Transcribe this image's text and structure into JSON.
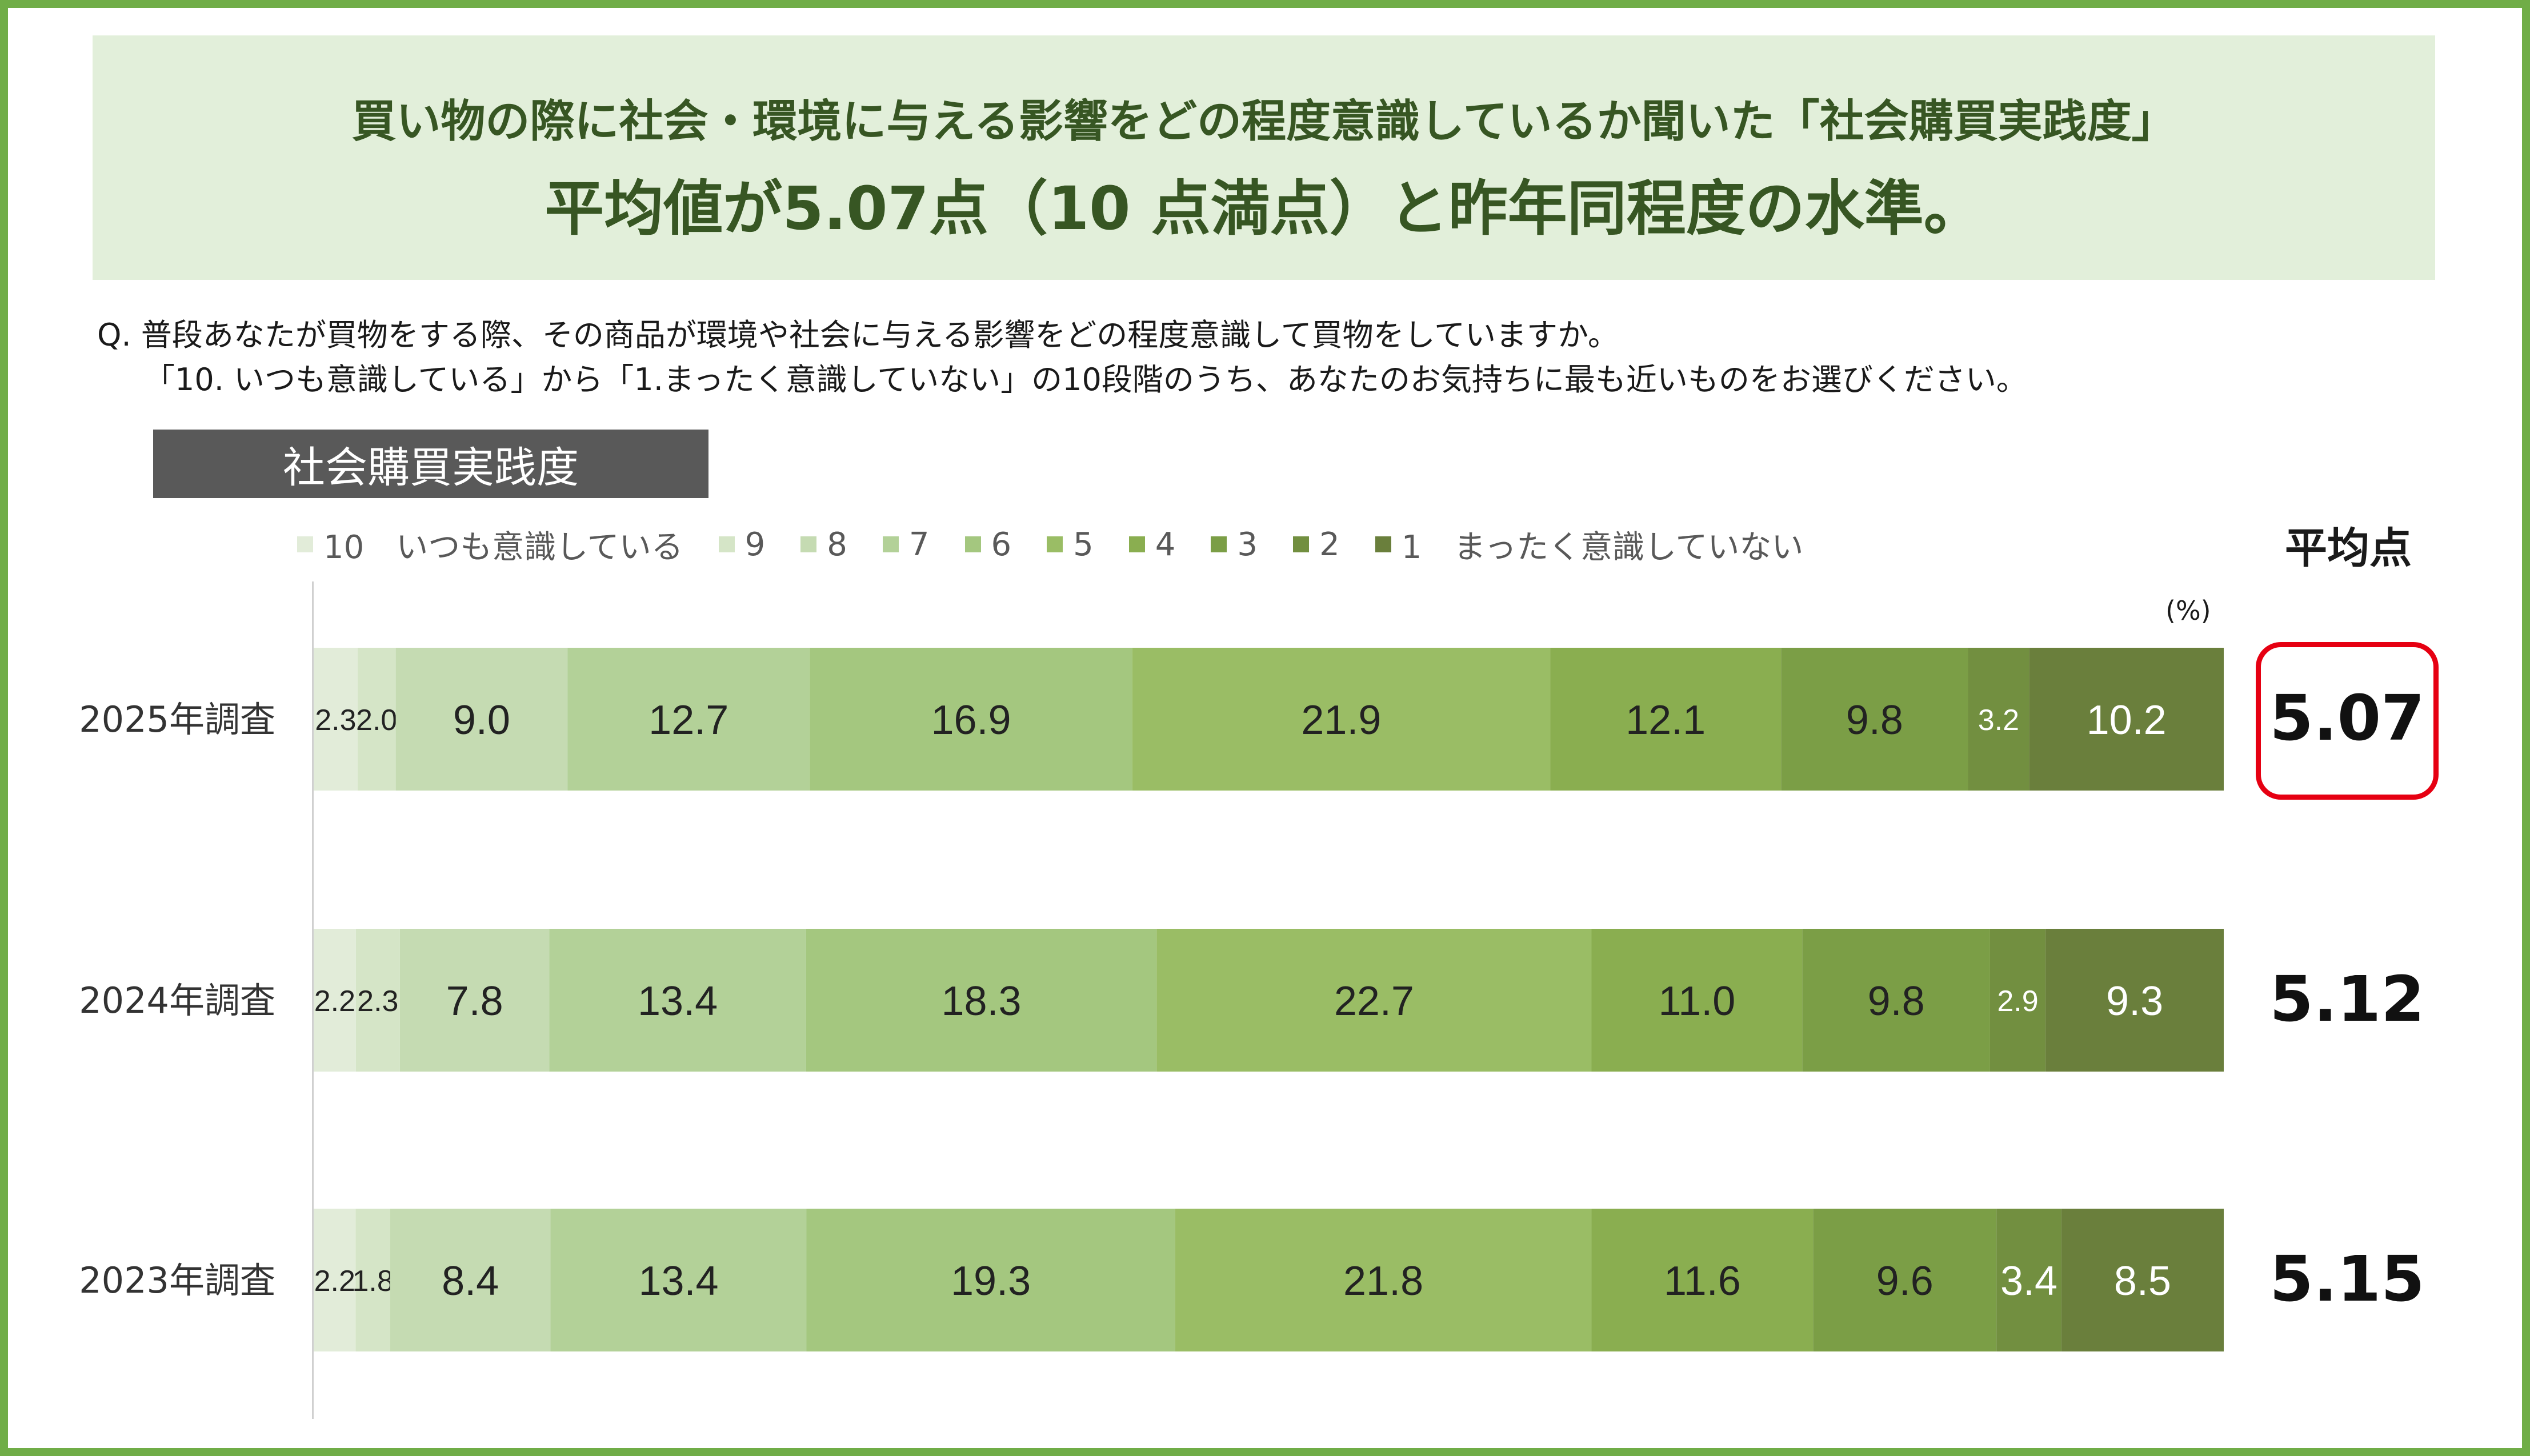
{
  "banner": {
    "line1": "買い物の際に社会・環境に与える影響をどの程度意識しているか聞いた「社会購買実践度」",
    "line2": "平均値が5.07点（10 点満点）と昨年同程度の水準。"
  },
  "question": {
    "line1": "Q.   普段あなたが買物をする際、その商品が環境や社会に与える影響をどの程度意識して買物をしていますか。",
    "line2": "「10. いつも意識している」から「1.まったく意識していない」の10段階のうち、あなたのお気持ちに最も近いものをお選びください。"
  },
  "section_label": "社会購買実践度",
  "avg_header": "平均点",
  "unit": "(%)",
  "chart_data": {
    "type": "bar",
    "orientation": "horizontal",
    "stacked": true,
    "unit": "%",
    "categories": [
      "2025年調査",
      "2024年調査",
      "2023年調査"
    ],
    "series": [
      {
        "name": "10　いつも意識している",
        "values": [
          2.3,
          2.2,
          2.2
        ],
        "color": "#e2ecd9"
      },
      {
        "name": "9",
        "values": [
          2.0,
          2.3,
          1.8
        ],
        "color": "#d5e5c7"
      },
      {
        "name": "8",
        "values": [
          9.0,
          7.8,
          8.4
        ],
        "color": "#c5dbb2"
      },
      {
        "name": "7",
        "values": [
          12.7,
          13.4,
          13.4
        ],
        "color": "#b3d198"
      },
      {
        "name": "6",
        "values": [
          16.9,
          18.3,
          19.3
        ],
        "color": "#a4c77f"
      },
      {
        "name": "5",
        "values": [
          21.9,
          22.7,
          21.8
        ],
        "color": "#9abd65"
      },
      {
        "name": "4",
        "values": [
          12.1,
          11.0,
          11.6
        ],
        "color": "#8aae50"
      },
      {
        "name": "3",
        "values": [
          9.8,
          9.8,
          9.6
        ],
        "color": "#7b9e46"
      },
      {
        "name": "2",
        "values": [
          3.2,
          2.9,
          3.4
        ],
        "color": "#728f40"
      },
      {
        "name": "1　まったく意識していない",
        "values": [
          10.2,
          9.3,
          8.5
        ],
        "color": "#6a7f3c"
      }
    ],
    "averages": [
      "5.07",
      "5.12",
      "5.15"
    ],
    "highlight_average": "2025年調査",
    "label_colors": {
      "dark": "#222222",
      "light": "#ffffff"
    }
  }
}
